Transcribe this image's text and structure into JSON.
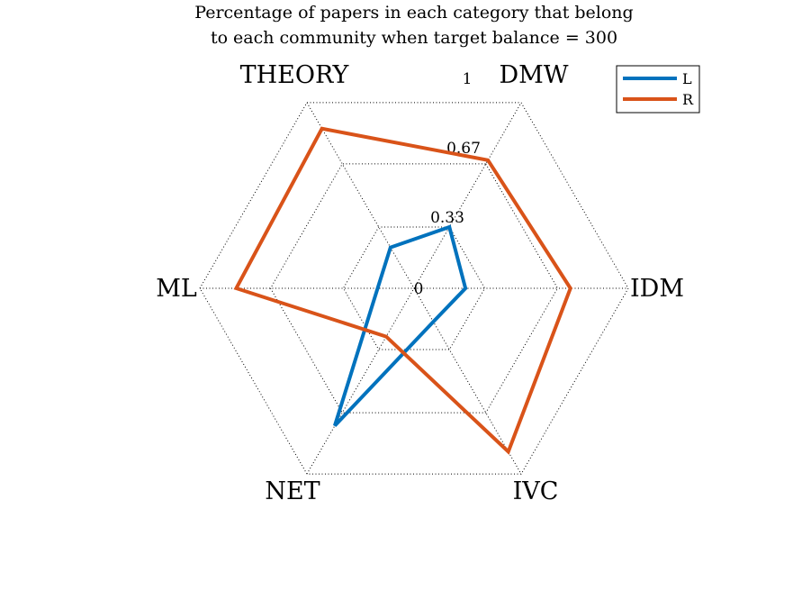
{
  "chart_data": {
    "type": "radar",
    "title": "Percentage of papers in each category that belong",
    "subtitle": "to each community when target balance = 300",
    "categories": [
      "DMW",
      "IDM",
      "IVC",
      "NET",
      "ML",
      "THEORY"
    ],
    "rlim": [
      0,
      1
    ],
    "ticks": [
      0,
      0.33,
      0.67,
      1
    ],
    "tick_labels": [
      "0",
      "0.33",
      "0.67",
      "1"
    ],
    "grid": true,
    "legend_position": "top-right",
    "series": [
      {
        "name": "L",
        "color": "#0072BD",
        "values": [
          0.33,
          0.24,
          0.18,
          0.74,
          0.17,
          0.22
        ]
      },
      {
        "name": "R",
        "color": "#D95319",
        "values": [
          0.69,
          0.73,
          0.88,
          0.26,
          0.83,
          0.86
        ]
      }
    ]
  }
}
